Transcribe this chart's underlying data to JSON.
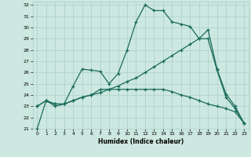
{
  "xlabel": "Humidex (Indice chaleur)",
  "background_color": "#cce8e0",
  "grid_color": "#aacfc8",
  "line_color": "#1a6b5a",
  "xlim": [
    -0.5,
    23.5
  ],
  "ylim": [
    21,
    32.3
  ],
  "xticks": [
    0,
    1,
    2,
    3,
    4,
    5,
    6,
    7,
    8,
    9,
    10,
    11,
    12,
    13,
    14,
    15,
    16,
    17,
    18,
    19,
    20,
    21,
    22,
    23
  ],
  "yticks": [
    21,
    22,
    23,
    24,
    25,
    26,
    27,
    28,
    29,
    30,
    31,
    32
  ],
  "line1_x": [
    0,
    1,
    2,
    3,
    4,
    5,
    6,
    7,
    8,
    9,
    10,
    11,
    12,
    13,
    14,
    15,
    16,
    17,
    18,
    19,
    20,
    21,
    22,
    23
  ],
  "line1_y": [
    21.0,
    23.5,
    23.0,
    23.2,
    24.8,
    26.3,
    26.2,
    26.1,
    25.0,
    25.9,
    28.0,
    30.5,
    32.0,
    31.5,
    31.5,
    30.5,
    30.3,
    30.1,
    29.0,
    29.8,
    26.3,
    24.1,
    23.0,
    21.5
  ],
  "line2_x": [
    0,
    1,
    2,
    3,
    4,
    5,
    6,
    7,
    8,
    9,
    10,
    11,
    12,
    13,
    14,
    15,
    16,
    17,
    18,
    19,
    20,
    21,
    22,
    23
  ],
  "line2_y": [
    23.0,
    23.5,
    23.2,
    23.2,
    23.5,
    23.8,
    24.0,
    24.2,
    24.5,
    24.8,
    25.2,
    25.5,
    26.0,
    26.5,
    27.0,
    27.5,
    28.0,
    28.5,
    29.0,
    29.0,
    26.2,
    23.8,
    22.8,
    21.5
  ],
  "line3_x": [
    0,
    1,
    2,
    3,
    4,
    5,
    6,
    7,
    8,
    9,
    10,
    11,
    12,
    13,
    14,
    15,
    16,
    17,
    18,
    19,
    20,
    21,
    22,
    23
  ],
  "line3_y": [
    23.0,
    23.5,
    23.2,
    23.2,
    23.5,
    23.8,
    24.0,
    24.5,
    24.5,
    24.5,
    24.5,
    24.5,
    24.5,
    24.5,
    24.5,
    24.3,
    24.0,
    23.8,
    23.5,
    23.2,
    23.0,
    22.8,
    22.5,
    21.5
  ]
}
